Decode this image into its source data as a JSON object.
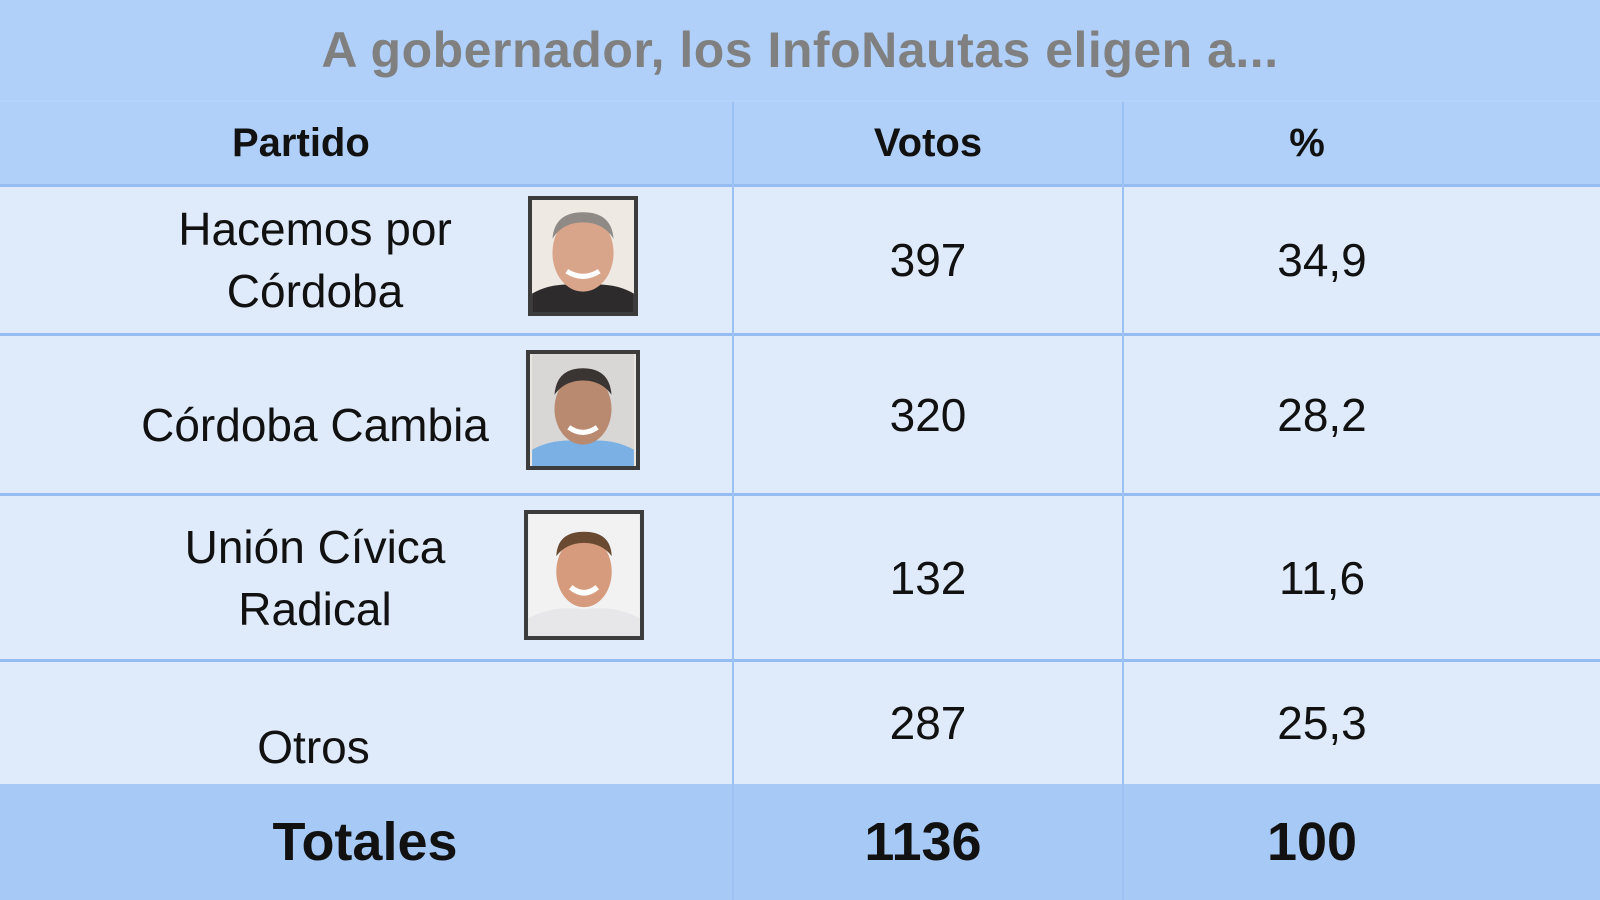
{
  "title": "A gobernador, los InfoNautas eligen a...",
  "chart_data": {
    "type": "table",
    "columns": [
      "Partido",
      "Votos",
      "%"
    ],
    "rows": [
      {
        "partido": "Hacemos por Córdoba",
        "votos": "397",
        "pct": "34,9",
        "photo": "candidate-photo-1"
      },
      {
        "partido": "Córdoba Cambia",
        "votos": "320",
        "pct": "28,2",
        "photo": "candidate-photo-2"
      },
      {
        "partido": "Unión Cívica Radical",
        "votos": "132",
        "pct": "11,6",
        "photo": "candidate-photo-3"
      },
      {
        "partido": "Otros",
        "votos": "287",
        "pct": "25,3"
      }
    ],
    "totals": {
      "label": "Totales",
      "votos": "1136",
      "pct": "100"
    }
  },
  "colors": {
    "background": "#b3d3fb",
    "header_row": "#b0d0fa",
    "data_row": "#dfeafb",
    "totals_row": "#a7c9f6",
    "title_text": "#808080"
  }
}
